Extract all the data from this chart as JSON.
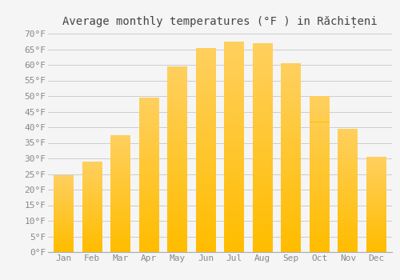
{
  "title": "Average monthly temperatures (°F ) in Răchițeni",
  "months": [
    "Jan",
    "Feb",
    "Mar",
    "Apr",
    "May",
    "Jun",
    "Jul",
    "Aug",
    "Sep",
    "Oct",
    "Nov",
    "Dec"
  ],
  "values": [
    24.5,
    29.0,
    37.5,
    49.5,
    59.5,
    65.5,
    67.5,
    67.0,
    60.5,
    50.0,
    39.5,
    30.5
  ],
  "bar_color_main": "#FFBC00",
  "bar_color_light": "#FFD060",
  "bar_edge_color": "#E8A800",
  "background_color": "#f5f5f5",
  "grid_color": "#cccccc",
  "ylim": [
    0,
    70
  ],
  "yticks": [
    0,
    5,
    10,
    15,
    20,
    25,
    30,
    35,
    40,
    45,
    50,
    55,
    60,
    65,
    70
  ],
  "title_fontsize": 10,
  "tick_fontsize": 8,
  "tick_color": "#888888",
  "bar_width": 0.7
}
